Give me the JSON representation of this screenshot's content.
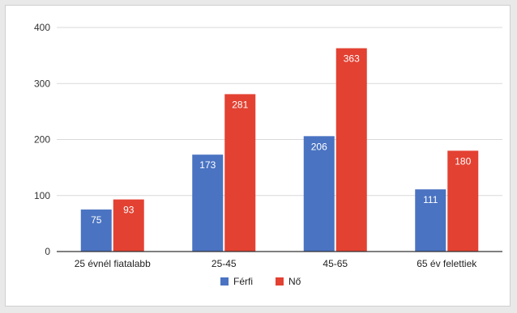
{
  "chart_data": {
    "type": "bar",
    "title": "",
    "xlabel": "",
    "ylabel": "",
    "categories": [
      "25 évnél fiatalabb",
      "25-45",
      "45-65",
      "65 év felettiek"
    ],
    "series": [
      {
        "name": "Férfi",
        "values": [
          75,
          173,
          206,
          111
        ],
        "color": "#4a73c2"
      },
      {
        "name": "Nő",
        "values": [
          93,
          281,
          363,
          180
        ],
        "color": "#e34132"
      }
    ],
    "ylim": [
      0,
      400
    ],
    "yticks": [
      0,
      100,
      200,
      300,
      400
    ],
    "grid": true,
    "legend": "bottom"
  }
}
